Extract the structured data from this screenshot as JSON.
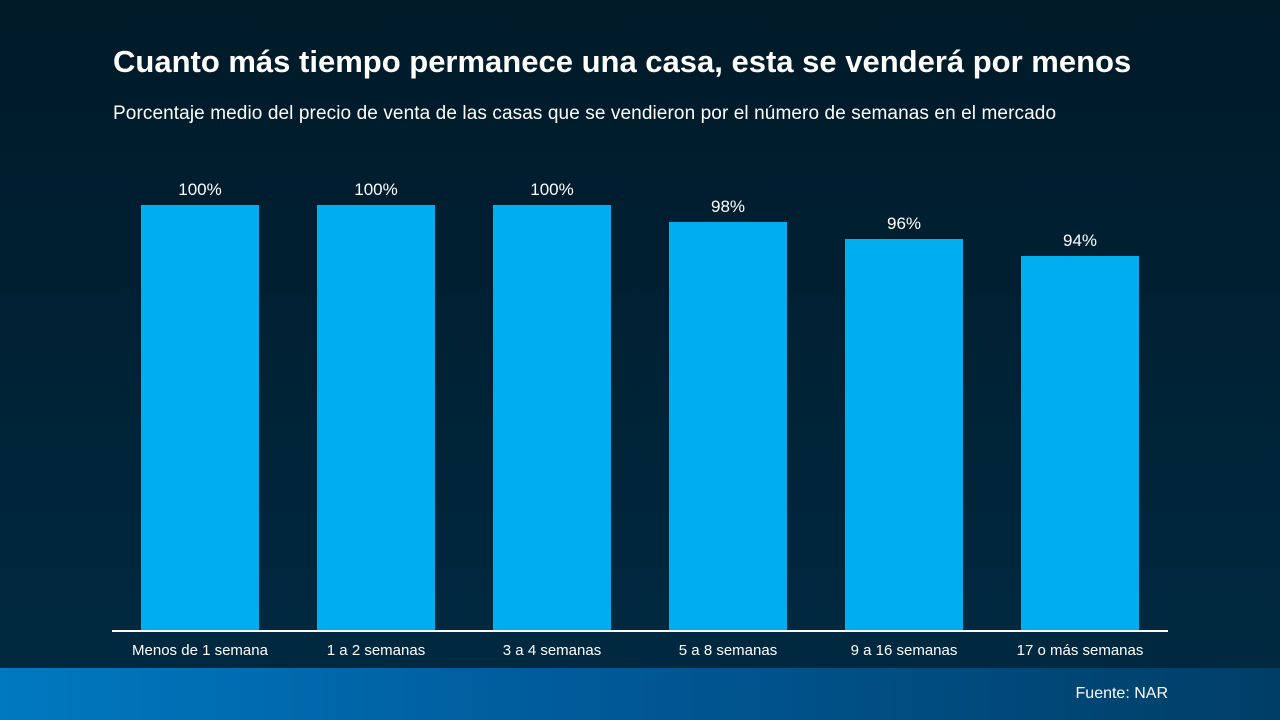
{
  "colors": {
    "bar": "#00aeef",
    "axis": "#ffffff",
    "text": "#ffffff"
  },
  "chart_data": {
    "type": "bar",
    "title": "Cuanto más tiempo permanece una casa, esta se venderá por menos",
    "subtitle": "Porcentaje medio del precio de venta de las casas que se vendieron por el número de semanas en el mercado",
    "categories": [
      "Menos de 1 semana",
      "1 a 2 semanas",
      "3 a 4 semanas",
      "5 a 8 semanas",
      "9 a 16 semanas",
      "17 o más semanas"
    ],
    "values": [
      100,
      100,
      100,
      98,
      96,
      94
    ],
    "value_labels": [
      "100%",
      "100%",
      "100%",
      "98%",
      "96%",
      "94%"
    ],
    "xlabel": "",
    "ylabel": "",
    "ylim": [
      50,
      100
    ],
    "grid": false
  },
  "footer": {
    "source": "Fuente: NAR"
  }
}
